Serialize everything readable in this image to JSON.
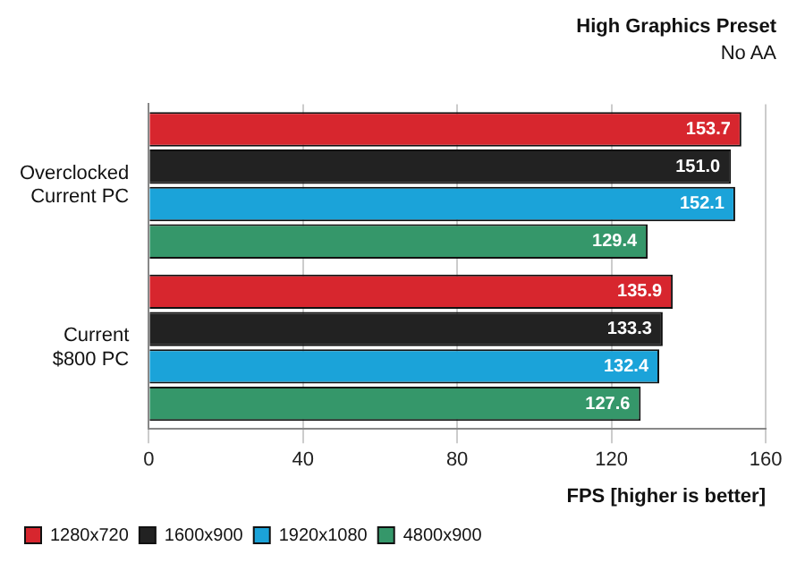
{
  "chart_data": {
    "type": "bar",
    "orientation": "horizontal",
    "title": "High Graphics Preset",
    "subtitle": "No AA",
    "xlabel": "FPS [higher is better]",
    "categories": [
      "Overclocked Current PC",
      "Current $800 PC"
    ],
    "series": [
      {
        "name": "1280x720",
        "color": "#d7262e",
        "values": [
          153.7,
          135.9
        ],
        "value_labels": [
          "153.7",
          "135.9"
        ]
      },
      {
        "name": "1600x900",
        "color": "#222222",
        "values": [
          151.0,
          133.3
        ],
        "value_labels": [
          "151.0",
          "133.3"
        ]
      },
      {
        "name": "1920x1080",
        "color": "#1ba3d9",
        "values": [
          152.1,
          132.4
        ],
        "value_labels": [
          "152.1",
          "132.4"
        ]
      },
      {
        "name": "4800x900",
        "color": "#35976a",
        "values": [
          129.4,
          127.6
        ],
        "value_labels": [
          "129.4",
          "127.6"
        ]
      }
    ],
    "xlim": [
      0,
      160
    ],
    "xticks": [
      0,
      40,
      80,
      120,
      160
    ],
    "grid": "x",
    "legend": "bottom"
  }
}
